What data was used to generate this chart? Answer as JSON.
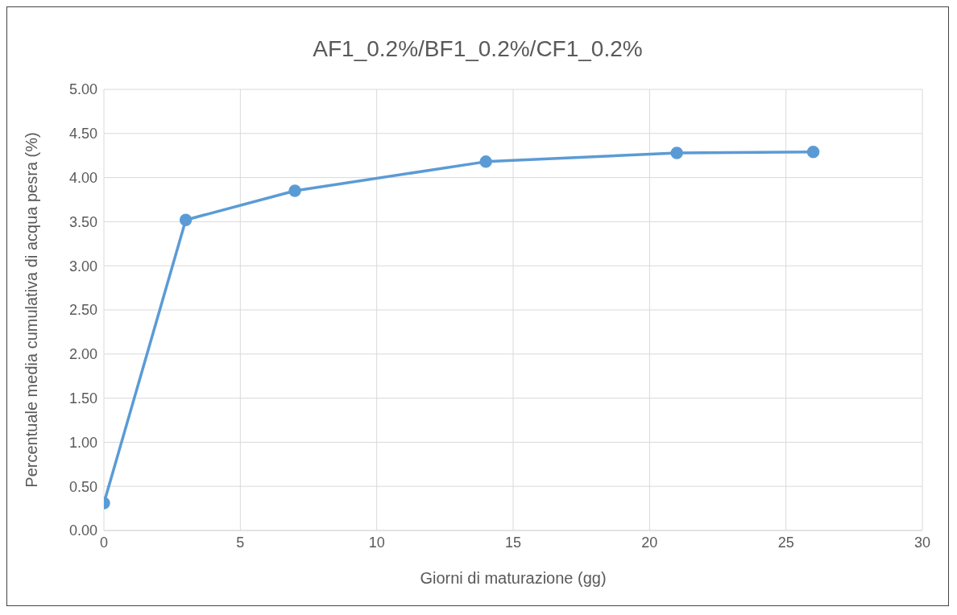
{
  "chart_data": {
    "type": "line",
    "title": "AF1_0.2%/BF1_0.2%/CF1_0.2%",
    "xlabel": "Giorni di maturazione (gg)",
    "ylabel": "Percentuale media cumulativa di acqua pesra (%)",
    "x": [
      0,
      3,
      7,
      14,
      21,
      26
    ],
    "series": [
      {
        "color": "#5b9bd5",
        "values": [
          0.31,
          3.52,
          3.85,
          4.18,
          4.28,
          4.29
        ]
      }
    ],
    "xlim": [
      0,
      30
    ],
    "xticks": [
      0,
      5,
      10,
      15,
      20,
      25,
      30
    ],
    "ylim": [
      0,
      5
    ],
    "yticks": [
      {
        "value": 0,
        "label": "0.00"
      },
      {
        "value": 0.5,
        "label": "0.50"
      },
      {
        "value": 1,
        "label": "1.00"
      },
      {
        "value": 1.5,
        "label": "1.50"
      },
      {
        "value": 2,
        "label": "2.00"
      },
      {
        "value": 2.5,
        "label": "2.50"
      },
      {
        "value": 3,
        "label": "3.00"
      },
      {
        "value": 3.5,
        "label": "3.50"
      },
      {
        "value": 4,
        "label": "4.00"
      },
      {
        "value": 4.5,
        "label": "4.50"
      },
      {
        "value": 5,
        "label": "5.00"
      }
    ],
    "grid": true,
    "marker": "circle",
    "line_style": "solid"
  }
}
